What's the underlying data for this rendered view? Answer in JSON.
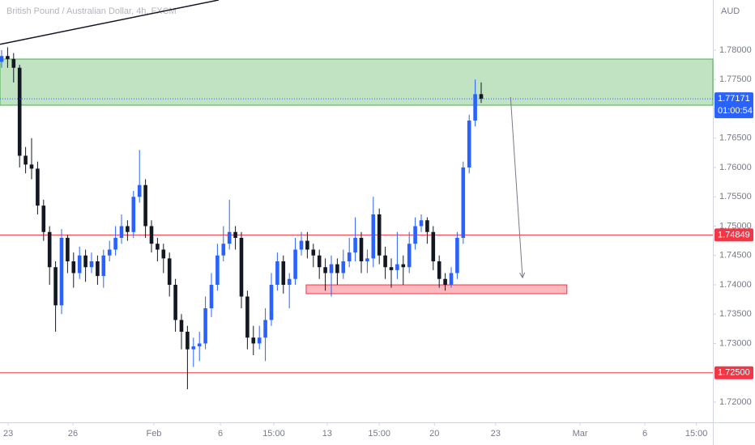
{
  "chart_data": {
    "type": "candlestick",
    "title": "British Pound / Australian Dollar, 4h, FXCM",
    "currency": "AUD",
    "open": [
      1.778,
      1.779,
      1.7785,
      1.777,
      1.762,
      1.7605,
      1.7598,
      1.7535,
      1.749,
      1.743,
      1.7365,
      1.748,
      1.744,
      1.742,
      1.745,
      1.743,
      1.744,
      1.7415,
      1.745,
      1.746,
      1.748,
      1.75,
      1.749,
      1.755,
      1.757,
      1.75,
      1.747,
      1.746,
      1.7445,
      1.74,
      1.734,
      1.732,
      1.729,
      1.7295,
      1.73,
      1.736,
      1.74,
      1.745,
      1.747,
      1.749,
      1.748,
      1.738,
      1.731,
      1.73,
      1.731,
      1.734,
      1.74,
      1.744,
      1.74,
      1.741,
      1.746,
      1.7475,
      1.746,
      1.745,
      1.743,
      1.742,
      1.7435,
      1.742,
      1.744,
      1.7455,
      1.748,
      1.744,
      1.7445,
      1.752,
      1.745,
      1.743,
      1.7425,
      1.7435,
      1.743,
      1.747,
      1.75,
      1.751,
      1.749,
      1.744,
      1.741,
      1.74,
      1.742,
      1.748,
      1.76,
      1.768,
      1.7725
    ],
    "high": [
      1.78,
      1.7805,
      1.7795,
      1.7775,
      1.7635,
      1.765,
      1.761,
      1.7545,
      1.75,
      1.744,
      1.7495,
      1.7485,
      1.7455,
      1.7465,
      1.746,
      1.7455,
      1.745,
      1.746,
      1.7475,
      1.75,
      1.752,
      1.751,
      1.756,
      1.763,
      1.758,
      1.751,
      1.748,
      1.747,
      1.7455,
      1.741,
      1.735,
      1.733,
      1.731,
      1.732,
      1.738,
      1.742,
      1.747,
      1.75,
      1.7545,
      1.75,
      1.749,
      1.739,
      1.733,
      1.733,
      1.736,
      1.742,
      1.7455,
      1.745,
      1.742,
      1.748,
      1.749,
      1.749,
      1.747,
      1.746,
      1.7445,
      1.745,
      1.7445,
      1.746,
      1.748,
      1.7515,
      1.749,
      1.746,
      1.755,
      1.753,
      1.7465,
      1.7445,
      1.749,
      1.745,
      1.749,
      1.7515,
      1.752,
      1.7515,
      1.75,
      1.745,
      1.742,
      1.743,
      1.749,
      1.761,
      1.769,
      1.775,
      1.7745
    ],
    "low": [
      1.777,
      1.777,
      1.7745,
      1.76,
      1.759,
      1.758,
      1.752,
      1.7475,
      1.74,
      1.732,
      1.735,
      1.742,
      1.7395,
      1.741,
      1.7405,
      1.742,
      1.74,
      1.7395,
      1.744,
      1.745,
      1.747,
      1.7475,
      1.748,
      1.754,
      1.748,
      1.7455,
      1.744,
      1.742,
      1.738,
      1.732,
      1.729,
      1.7222,
      1.726,
      1.727,
      1.729,
      1.7345,
      1.739,
      1.744,
      1.746,
      1.746,
      1.736,
      1.729,
      1.728,
      1.729,
      1.727,
      1.733,
      1.739,
      1.7385,
      1.736,
      1.74,
      1.745,
      1.7445,
      1.743,
      1.741,
      1.739,
      1.738,
      1.74,
      1.741,
      1.743,
      1.744,
      1.742,
      1.742,
      1.743,
      1.7435,
      1.741,
      1.7395,
      1.741,
      1.74,
      1.742,
      1.746,
      1.749,
      1.747,
      1.7425,
      1.7395,
      1.739,
      1.7395,
      1.741,
      1.747,
      1.759,
      1.767,
      1.771
    ],
    "close": [
      1.779,
      1.7785,
      1.777,
      1.762,
      1.7605,
      1.7598,
      1.7535,
      1.749,
      1.743,
      1.7365,
      1.748,
      1.744,
      1.742,
      1.745,
      1.743,
      1.744,
      1.7415,
      1.745,
      1.746,
      1.748,
      1.75,
      1.749,
      1.755,
      1.757,
      1.75,
      1.747,
      1.746,
      1.7445,
      1.74,
      1.734,
      1.732,
      1.729,
      1.7295,
      1.73,
      1.736,
      1.74,
      1.745,
      1.747,
      1.749,
      1.748,
      1.738,
      1.731,
      1.73,
      1.731,
      1.734,
      1.74,
      1.744,
      1.74,
      1.741,
      1.746,
      1.7475,
      1.746,
      1.745,
      1.743,
      1.742,
      1.7435,
      1.742,
      1.744,
      1.7455,
      1.748,
      1.744,
      1.7445,
      1.752,
      1.745,
      1.743,
      1.7425,
      1.7435,
      1.743,
      1.747,
      1.75,
      1.751,
      1.749,
      1.744,
      1.741,
      1.74,
      1.742,
      1.748,
      1.76,
      1.768,
      1.7725,
      1.7717
    ],
    "up_color": "#2962ff",
    "down_color": "#131722",
    "xlim": [
      -0.27,
      118.65
    ],
    "ylim": [
      1.71655,
      1.78855
    ],
    "xticks": [
      {
        "value": 1.1,
        "label": "23"
      },
      {
        "value": 11.9,
        "label": "26"
      },
      {
        "value": 25.4,
        "label": "Feb"
      },
      {
        "value": 36.5,
        "label": "6"
      },
      {
        "value": 45.4,
        "label": "15:00"
      },
      {
        "value": 54.3,
        "label": "13"
      },
      {
        "value": 63,
        "label": "15:00"
      },
      {
        "value": 72.2,
        "label": "20"
      },
      {
        "value": 82.4,
        "label": "23"
      },
      {
        "value": 96.5,
        "label": "Mar"
      },
      {
        "value": 107.3,
        "label": "6"
      },
      {
        "value": 115.9,
        "label": "15:00"
      }
    ],
    "yticks": [
      {
        "value": 1.72,
        "label": "1.72000"
      },
      {
        "value": 1.725,
        "label": "1.72500"
      },
      {
        "value": 1.73,
        "label": "1.73000"
      },
      {
        "value": 1.735,
        "label": "1.73500"
      },
      {
        "value": 1.74,
        "label": "1.74000"
      },
      {
        "value": 1.745,
        "label": "1.74500"
      },
      {
        "value": 1.75,
        "label": "1.75000"
      },
      {
        "value": 1.755,
        "label": "1.75500"
      },
      {
        "value": 1.76,
        "label": "1.76000"
      },
      {
        "value": 1.765,
        "label": "1.76500"
      },
      {
        "value": 1.77,
        "label": "1.77000"
      },
      {
        "value": 1.775,
        "label": "1.77500"
      },
      {
        "value": 1.78,
        "label": "1.78000"
      }
    ],
    "last_price": 1.77171,
    "countdown": "01:00:54",
    "last_price_color": "#2962ff",
    "levels": [
      {
        "value": 1.74849,
        "color": "#f23645"
      },
      {
        "value": 1.725,
        "label": "1.72500",
        "color": "#f23645"
      }
    ],
    "zones": [
      {
        "top": 1.77848,
        "bottom": 1.77062,
        "start": -0.27,
        "end": 118.65,
        "color": "#4caf50"
      },
      {
        "top": 1.73999,
        "bottom": 1.73848,
        "start": 50.8,
        "end": 94.3,
        "color": "#f23645"
      }
    ],
    "trendline": {
      "x": [
        -0.27,
        36.2
      ],
      "y": [
        1.781,
        1.78855
      ]
    },
    "arrow": {
      "x": [
        84.9,
        86.9
      ],
      "y": [
        1.772,
        1.7412
      ]
    }
  }
}
